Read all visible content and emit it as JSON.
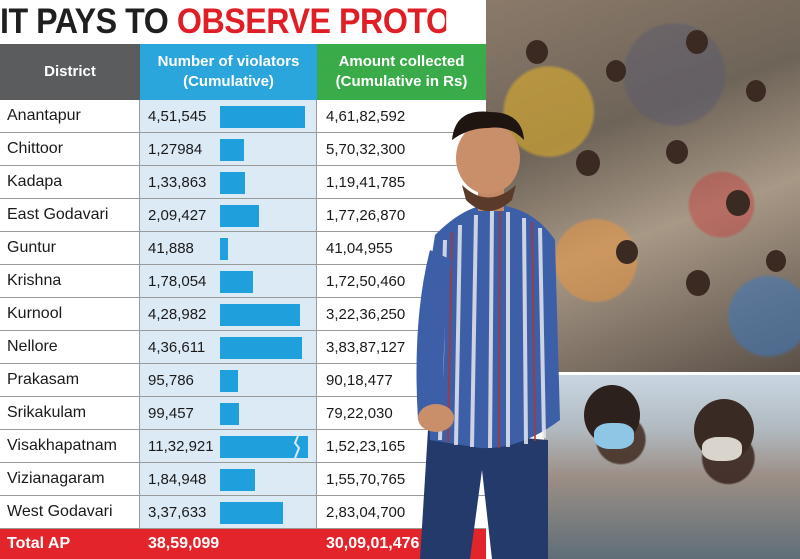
{
  "headline": {
    "part1": "IT PAYS TO ",
    "part2": "OBSERVE PROTOCOL"
  },
  "colors": {
    "headline_red": "#e01e25",
    "header_gray": "#5b5c5e",
    "header_blue": "#2aa6dd",
    "header_green": "#3aab49",
    "bar_blue": "#1fa0dc",
    "total_red": "#e3242b"
  },
  "chart_data": {
    "type": "table",
    "title": "IT PAYS TO OBSERVE PROTOCOL",
    "columns": [
      "District",
      "Number of violators (Cumulative)",
      "Amount collected (Cumulative in Rs)"
    ],
    "rows": [
      {
        "district": "Anantapur",
        "violators": "4,51,545",
        "violators_value": 451545,
        "amount": "4,61,82,592"
      },
      {
        "district": "Chittoor",
        "violators": "1,27984",
        "violators_value": 127984,
        "amount": "5,70,32,300"
      },
      {
        "district": "Kadapa",
        "violators": "1,33,863",
        "violators_value": 133863,
        "amount": "1,19,41,785"
      },
      {
        "district": "East Godavari",
        "violators": "2,09,427",
        "violators_value": 209427,
        "amount": "1,77,26,870"
      },
      {
        "district": "Guntur",
        "violators": "41,888",
        "violators_value": 41888,
        "amount": "41,04,955"
      },
      {
        "district": "Krishna",
        "violators": "1,78,054",
        "violators_value": 178054,
        "amount": "1,72,50,460"
      },
      {
        "district": "Kurnool",
        "violators": "4,28,982",
        "violators_value": 428982,
        "amount": "3,22,36,250"
      },
      {
        "district": "Nellore",
        "violators": "4,36,611",
        "violators_value": 436611,
        "amount": "3,83,87,127"
      },
      {
        "district": "Prakasam",
        "violators": "95,786",
        "violators_value": 95786,
        "amount": "90,18,477"
      },
      {
        "district": "Srikakulam",
        "violators": "99,457",
        "violators_value": 99457,
        "amount": "79,22,030"
      },
      {
        "district": "Visakhapatnam",
        "violators": "11,32,921",
        "violators_value": 1132921,
        "amount": "1,52,23,165",
        "bar_truncated": true
      },
      {
        "district": "Vizianagaram",
        "violators": "1,84,948",
        "violators_value": 184948,
        "amount": "1,55,70,765"
      },
      {
        "district": "West Godavari",
        "violators": "3,37,633",
        "violators_value": 337633,
        "amount": "2,83,04,700"
      }
    ],
    "bar_scale_max": 470000,
    "total": {
      "label": "Total AP",
      "violators": "38,59,099",
      "amount": "30,09,01,476"
    }
  },
  "header": {
    "district": "District",
    "violators_line1": "Number of violators",
    "violators_line2": "(Cumulative)",
    "amount_line1": "Amount collected",
    "amount_line2": "(Cumulative in Rs)"
  }
}
